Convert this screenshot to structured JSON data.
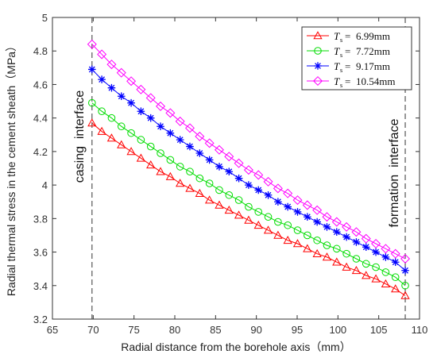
{
  "chart_data": {
    "type": "line",
    "xlabel": "Radial distance from the borehole axis（mm）",
    "ylabel": "Radial thermal stress in the cement sheath（MPa）",
    "xlim": [
      65,
      110
    ],
    "ylim": [
      3.2,
      5.0
    ],
    "xticks": [
      "65",
      "70",
      "75",
      "80",
      "85",
      "90",
      "95",
      "100",
      "105",
      "110"
    ],
    "yticks": [
      "3.2",
      "3.4",
      "3.6",
      "3.8",
      "4",
      "4.2",
      "4.4",
      "4.6",
      "4.8",
      "5"
    ],
    "grid": false,
    "legend_position": "top-right",
    "legend_symbol": "T",
    "legend_subscript": "s",
    "legend_equals": "=",
    "x": [
      69.85,
      71.05,
      72.25,
      73.45,
      74.65,
      75.85,
      77.05,
      78.25,
      79.45,
      80.65,
      81.85,
      83.05,
      84.25,
      85.45,
      86.65,
      87.85,
      89.05,
      90.25,
      91.45,
      92.65,
      93.85,
      95.05,
      96.25,
      97.45,
      98.65,
      99.85,
      101.05,
      102.25,
      103.45,
      104.65,
      105.85,
      107.05,
      108.25
    ],
    "series": [
      {
        "name": "6.99mm",
        "color": "#ff0000",
        "marker": "triangle",
        "values": [
          4.37,
          4.32,
          4.28,
          4.24,
          4.2,
          4.16,
          4.12,
          4.08,
          4.05,
          4.01,
          3.98,
          3.95,
          3.91,
          3.88,
          3.85,
          3.82,
          3.79,
          3.76,
          3.73,
          3.7,
          3.67,
          3.65,
          3.62,
          3.59,
          3.57,
          3.54,
          3.51,
          3.49,
          3.46,
          3.44,
          3.41,
          3.38,
          3.34
        ]
      },
      {
        "name": "7.72mm",
        "color": "#00dd00",
        "marker": "circle",
        "values": [
          4.49,
          4.44,
          4.4,
          4.35,
          4.31,
          4.27,
          4.23,
          4.19,
          4.15,
          4.11,
          4.08,
          4.04,
          4.01,
          3.97,
          3.94,
          3.91,
          3.87,
          3.84,
          3.81,
          3.78,
          3.76,
          3.73,
          3.7,
          3.67,
          3.64,
          3.62,
          3.59,
          3.56,
          3.53,
          3.51,
          3.48,
          3.45,
          3.4
        ]
      },
      {
        "name": "9.17mm",
        "color": "#0000ff",
        "marker": "asterisk",
        "values": [
          4.69,
          4.63,
          4.58,
          4.53,
          4.49,
          4.44,
          4.4,
          4.35,
          4.31,
          4.27,
          4.23,
          4.19,
          4.15,
          4.11,
          4.08,
          4.04,
          4.0,
          3.97,
          3.94,
          3.9,
          3.87,
          3.84,
          3.81,
          3.78,
          3.75,
          3.72,
          3.69,
          3.66,
          3.63,
          3.6,
          3.57,
          3.54,
          3.49
        ]
      },
      {
        "name": "10.54mm",
        "color": "#ff00ff",
        "marker": "diamond",
        "values": [
          4.84,
          4.78,
          4.72,
          4.67,
          4.62,
          4.57,
          4.52,
          4.47,
          4.43,
          4.38,
          4.34,
          4.29,
          4.25,
          4.21,
          4.17,
          4.13,
          4.09,
          4.06,
          4.02,
          3.98,
          3.95,
          3.91,
          3.88,
          3.85,
          3.81,
          3.78,
          3.75,
          3.72,
          3.68,
          3.65,
          3.62,
          3.59,
          3.56
        ]
      }
    ],
    "vlines": [
      {
        "x": 69.85,
        "label": "casing  interface",
        "color": "#555555"
      },
      {
        "x": 108.25,
        "label": "formation  interface",
        "color": "#555555"
      }
    ]
  }
}
